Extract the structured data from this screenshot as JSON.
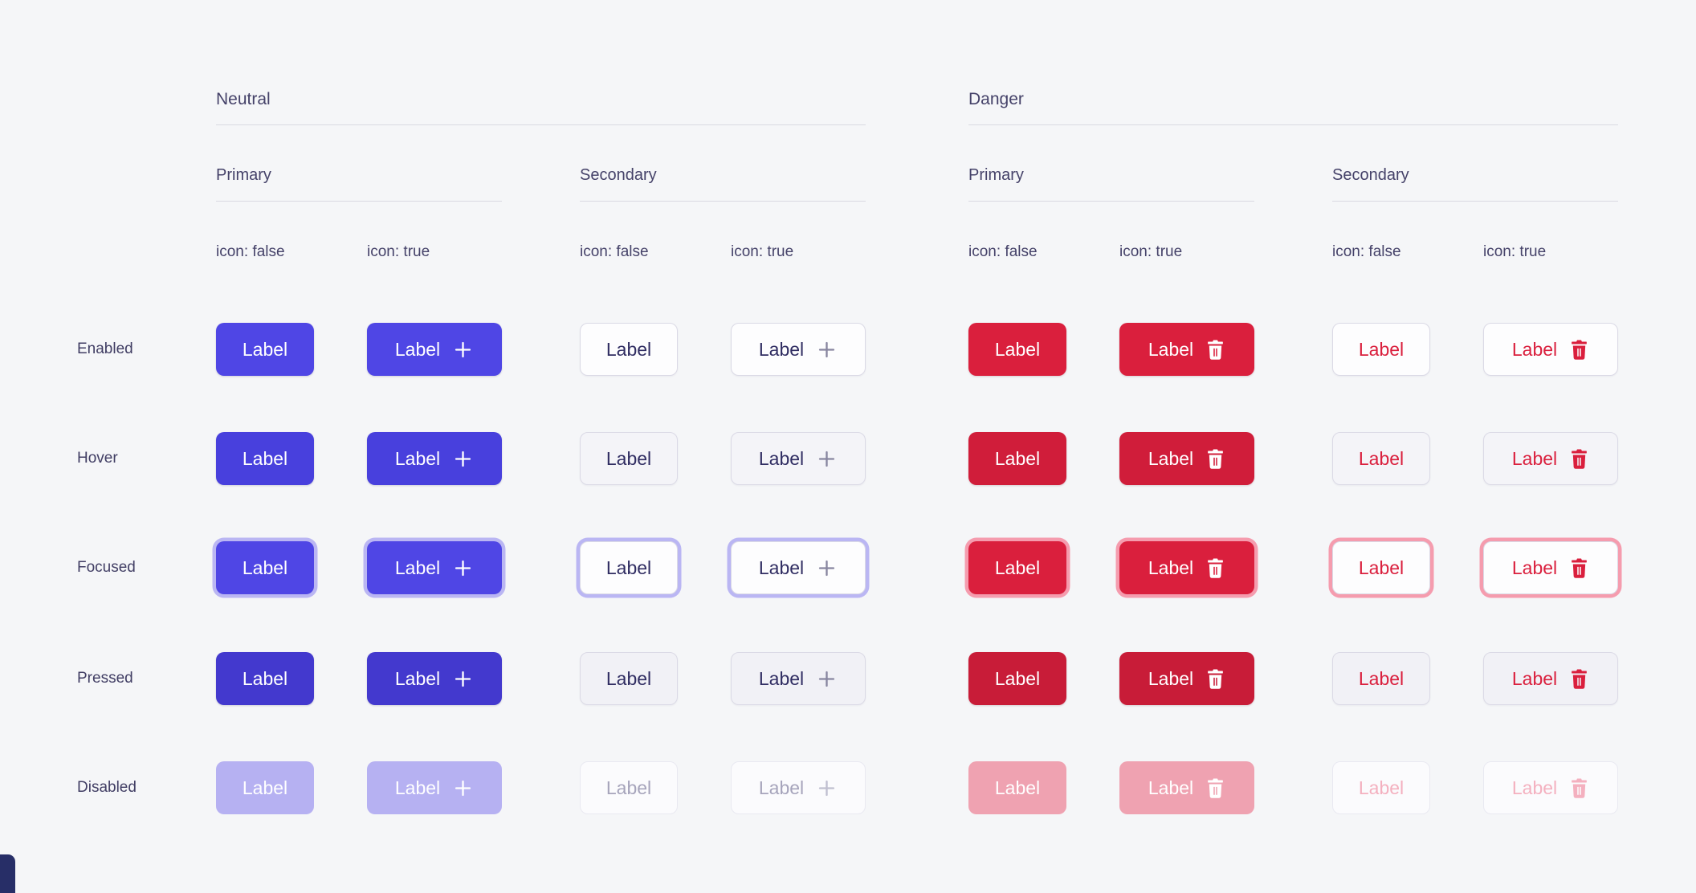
{
  "page_background": "#f5f6f8",
  "button_label": "Label",
  "row_labels": [
    "Enabled",
    "Hover",
    "Focused",
    "Pressed",
    "Disabled"
  ],
  "states": [
    "enabled",
    "hover",
    "focused",
    "pressed",
    "disabled"
  ],
  "groups": [
    {
      "title": "Neutral",
      "tone": "neutral",
      "icon_name": "plus-icon",
      "variants": [
        {
          "title": "Primary",
          "kind": "primary",
          "columns": [
            {
              "header": "icon: false",
              "icon": false
            },
            {
              "header": "icon: true",
              "icon": true
            }
          ]
        },
        {
          "title": "Secondary",
          "kind": "secondary",
          "columns": [
            {
              "header": "icon: false",
              "icon": false
            },
            {
              "header": "icon: true",
              "icon": true
            }
          ]
        }
      ]
    },
    {
      "title": "Danger",
      "tone": "danger",
      "icon_name": "trash-icon",
      "variants": [
        {
          "title": "Primary",
          "kind": "primary",
          "columns": [
            {
              "header": "icon: false",
              "icon": false
            },
            {
              "header": "icon: true",
              "icon": true
            }
          ]
        },
        {
          "title": "Secondary",
          "kind": "secondary",
          "columns": [
            {
              "header": "icon: false",
              "icon": false
            },
            {
              "header": "icon: true",
              "icon": true
            }
          ]
        }
      ]
    }
  ],
  "colors": {
    "neutral_primary": "#4f46e5",
    "neutral_primary_disabled": "#b6b1f2",
    "neutral_focus_ring": "#bab6f3",
    "danger_primary": "#da1f3d",
    "danger_primary_disabled": "#efa2b1",
    "danger_focus_ring": "#f59cae",
    "secondary_background": "#fdfdfe",
    "secondary_border": "#dbdae6",
    "neutral_secondary_text": "#302d62",
    "danger_secondary_text": "#da1f3d",
    "heading_text": "#454269",
    "rule_line": "#d9d9e2",
    "corner_fragment": "#272e67"
  }
}
